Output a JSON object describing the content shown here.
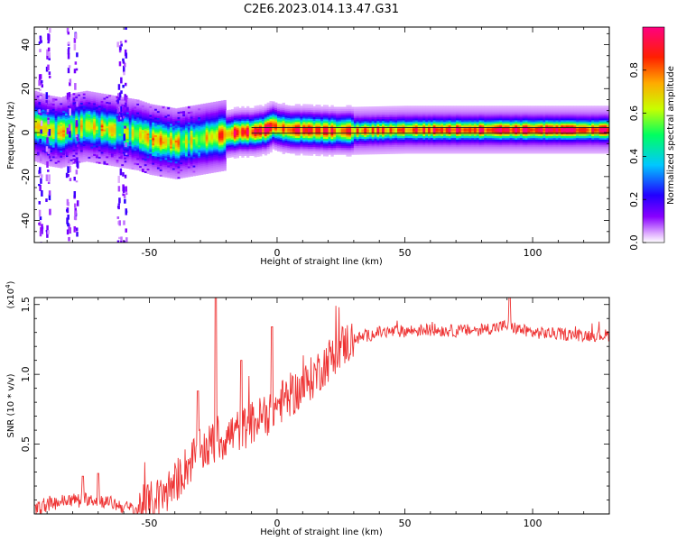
{
  "chart_data": [
    {
      "type": "heatmap",
      "title": "C2E6.2023.014.13.47.G31",
      "xlabel": "Height of straight line (km)",
      "ylabel": "Frequency (Hz)",
      "xlim": [
        -95,
        130
      ],
      "ylim": [
        -50,
        48
      ],
      "xticks": [
        -50,
        0,
        50,
        100
      ],
      "yticks": [
        -40,
        -20,
        0,
        20,
        40
      ],
      "xtick_labels": [
        "-50",
        "0",
        "50",
        "100"
      ],
      "ytick_labels": [
        "-40",
        "-20",
        "0",
        "20",
        "40"
      ],
      "colorbar": {
        "label": "Normalized spectral amplitude",
        "range": [
          0,
          1
        ],
        "ticks": [
          "0.0",
          "0.2",
          "0.4",
          "0.6",
          "0.8"
        ],
        "colormap": [
          "#ffffff",
          "#8800ff",
          "#2200ff",
          "#00c8ff",
          "#00ff60",
          "#c8ff00",
          "#ffaa00",
          "#ff2000",
          "#ff0080"
        ]
      },
      "ridge": {
        "x": [
          -95,
          -90,
          -85,
          -80,
          -75,
          -70,
          -65,
          -60,
          -55,
          -50,
          -45,
          -40,
          -35,
          -30,
          -25,
          -20,
          -15,
          -10,
          -5,
          -2,
          0,
          5,
          10,
          20,
          30,
          50,
          70,
          90,
          110,
          130
        ],
        "freq": [
          3,
          1,
          0,
          2,
          3,
          2,
          1,
          0,
          -1,
          -3,
          -4,
          -5,
          -4,
          -3,
          -2,
          -1,
          0,
          0,
          1,
          3,
          2,
          1,
          1,
          0.5,
          0.5,
          1,
          1,
          1,
          1,
          1
        ],
        "peak_amplitude": [
          0.5,
          0.45,
          0.5,
          0.55,
          0.5,
          0.5,
          0.45,
          0.45,
          0.45,
          0.5,
          0.55,
          0.55,
          0.5,
          0.55,
          0.6,
          0.7,
          0.75,
          0.7,
          0.8,
          0.85,
          0.75,
          0.75,
          0.7,
          0.7,
          0.65,
          0.7,
          0.8,
          0.85,
          0.8,
          0.8
        ]
      }
    },
    {
      "type": "line",
      "xlabel": "Height of straight line (km)",
      "ylabel": "SNR (10 * v/v)",
      "y_multiplier": "(x10^4)",
      "y_multiplier_base": "(x10",
      "y_multiplier_exp": "4",
      "y_multiplier_close": ")",
      "xlim": [
        -95,
        130
      ],
      "ylim": [
        0,
        15500
      ],
      "xticks": [
        -50,
        0,
        50,
        100
      ],
      "xtick_labels": [
        "-50",
        "0",
        "50",
        "100"
      ],
      "yticks": [
        5000,
        10000,
        15000
      ],
      "ytick_labels": [
        "0.5",
        "1.0",
        "1.5"
      ],
      "series": [
        {
          "name": "SNR",
          "color": "#ee3333",
          "x": [
            -95,
            -90,
            -85,
            -80,
            -75,
            -70,
            -65,
            -60,
            -55,
            -50,
            -45,
            -40,
            -35,
            -30,
            -25,
            -20,
            -15,
            -10,
            -5,
            0,
            5,
            10,
            15,
            20,
            25,
            30,
            40,
            50,
            60,
            70,
            80,
            90,
            95,
            100,
            110,
            120,
            130
          ],
          "values": [
            300,
            600,
            900,
            1000,
            1100,
            1000,
            800,
            500,
            300,
            700,
            1200,
            2200,
            3500,
            4500,
            5000,
            5500,
            6000,
            6500,
            7000,
            7800,
            8500,
            9000,
            10000,
            11000,
            12000,
            12500,
            13000,
            13100,
            13200,
            13100,
            13200,
            13500,
            13200,
            13000,
            12900,
            12800,
            12800
          ],
          "spikes": [
            {
              "x": -76,
              "value": 2700
            },
            {
              "x": -70,
              "value": 2900
            },
            {
              "x": -31,
              "value": 8800
            },
            {
              "x": -24,
              "value": 15500
            },
            {
              "x": -14,
              "value": 11000
            },
            {
              "x": -2,
              "value": 13400
            },
            {
              "x": 91,
              "value": 15500
            }
          ]
        }
      ]
    }
  ]
}
